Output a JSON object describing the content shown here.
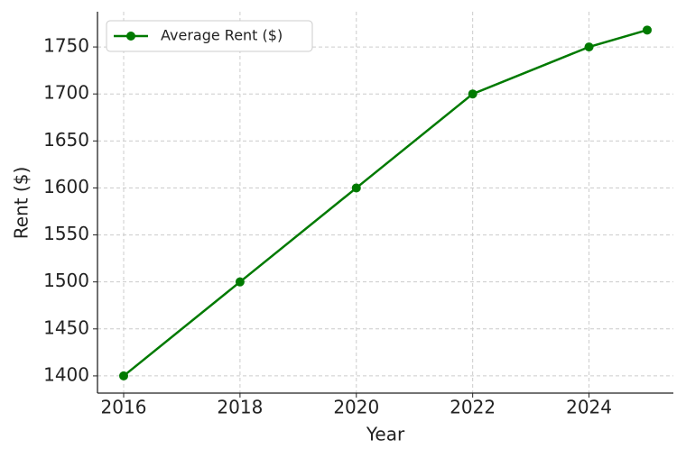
{
  "chart_data": {
    "type": "line",
    "x_label": "Year",
    "y_label": "Rent ($)",
    "x": [
      2016,
      2018,
      2020,
      2022,
      2024,
      2025
    ],
    "series": [
      {
        "name": "Average Rent ($)",
        "color": "#007a00",
        "values": [
          1400,
          1500,
          1600,
          1700,
          1750,
          1768
        ]
      }
    ],
    "xlim": [
      2015.55,
      2025.45
    ],
    "xticks": [
      2016,
      2018,
      2020,
      2022,
      2024
    ],
    "ylim": [
      1381.7,
      1787.5
    ],
    "yticks": [
      1400,
      1450,
      1500,
      1550,
      1600,
      1650,
      1700,
      1750
    ],
    "grid": true,
    "legend": "upper left",
    "markers": true
  }
}
